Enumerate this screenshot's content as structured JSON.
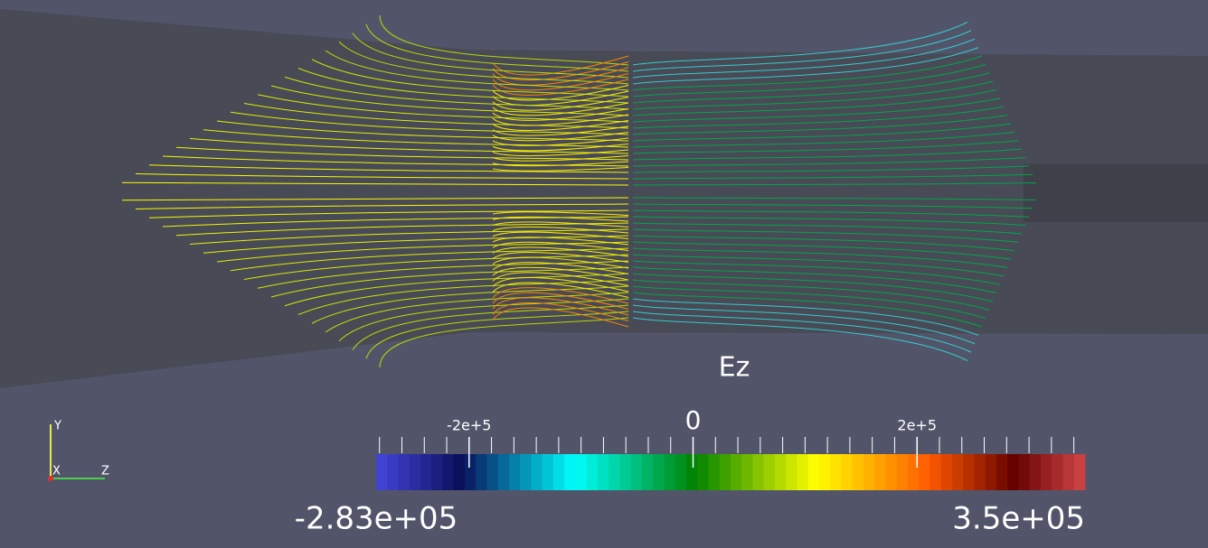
{
  "colorbar": {
    "title": "Ez",
    "min": {
      "value": -283000,
      "label": "-2.83e+05"
    },
    "max": {
      "value": 350000,
      "label": "3.5e+05"
    },
    "ticks": [
      {
        "value": -200000,
        "label": "-2e+5"
      },
      0,
      {
        "value": 200000,
        "label": "2e+5"
      }
    ],
    "minor_ticks": [
      -280000,
      -260000,
      -240000,
      -220000,
      -200000,
      -180000,
      -160000,
      -140000,
      -120000,
      -100000,
      -80000,
      -60000,
      -40000,
      -20000,
      0,
      20000,
      40000,
      60000,
      80000,
      100000,
      120000,
      140000,
      160000,
      180000,
      200000,
      220000,
      240000,
      260000,
      280000,
      300000,
      320000,
      340000
    ]
  },
  "axes_triad": {
    "y": "Y",
    "x": "X",
    "z": "Z"
  }
}
